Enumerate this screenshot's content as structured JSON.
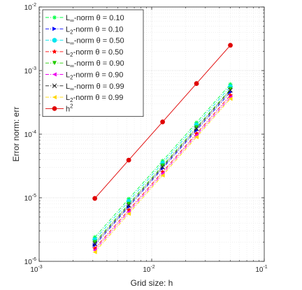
{
  "chart_data": {
    "type": "line",
    "xscale": "log",
    "yscale": "log",
    "xlim": [
      0.001,
      0.1
    ],
    "ylim": [
      1e-06,
      0.01
    ],
    "xlabel": "Grid size: h",
    "ylabel": "Error norm: err",
    "x_ticks": [
      {
        "value": 0.001,
        "base": "10",
        "exp": "-3"
      },
      {
        "value": 0.01,
        "base": "10",
        "exp": "-2"
      },
      {
        "value": 0.1,
        "base": "10",
        "exp": "-1"
      }
    ],
    "y_ticks": [
      {
        "value": 1e-06,
        "base": "10",
        "exp": "-6"
      },
      {
        "value": 1e-05,
        "base": "10",
        "exp": "-5"
      },
      {
        "value": 0.0001,
        "base": "10",
        "exp": "-4"
      },
      {
        "value": 0.001,
        "base": "10",
        "exp": "-3"
      },
      {
        "value": 0.01,
        "base": "10",
        "exp": "-2"
      }
    ],
    "grid": true,
    "legend_position": "top-left",
    "x": [
      0.003125,
      0.00625,
      0.0125,
      0.025,
      0.05
    ],
    "series": [
      {
        "name": "L∞-norm θ = 0.10",
        "base": "L",
        "sub": "∞",
        "rest": "-norm θ = 0.10",
        "color": "#00ff44",
        "line": "dashdot",
        "marker": "asterisk",
        "values": [
          2.4e-06,
          9.6e-06,
          3.8e-05,
          0.000152,
          0.00061
        ]
      },
      {
        "name": "L2-norm θ = 0.10",
        "base": "L",
        "sub": "2",
        "rest": "-norm θ = 0.10",
        "color": "#0000ff",
        "line": "dashdot",
        "marker": "triangle-right",
        "values": [
          1.8e-06,
          7.2e-06,
          2.9e-05,
          0.000115,
          0.00046
        ]
      },
      {
        "name": "L∞-norm θ = 0.50",
        "base": "L",
        "sub": "∞",
        "rest": "-norm θ = 0.50",
        "color": "#00e5ee",
        "line": "dashdot",
        "marker": "circle",
        "values": [
          2.2e-06,
          8.8e-06,
          3.5e-05,
          0.00014,
          0.00056
        ]
      },
      {
        "name": "L2-norm θ = 0.50",
        "base": "L",
        "sub": "2",
        "rest": "-norm θ = 0.50",
        "color": "#ff0000",
        "line": "dashdot",
        "marker": "star",
        "values": [
          1.6e-06,
          6.4e-06,
          2.55e-05,
          0.000102,
          0.00041
        ]
      },
      {
        "name": "L∞-norm θ = 0.90",
        "base": "L",
        "sub": "∞",
        "rest": "-norm θ = 0.90",
        "color": "#22cc00",
        "line": "dashdot",
        "marker": "triangle-down",
        "values": [
          2e-06,
          8e-06,
          3.2e-05,
          0.000128,
          0.00051
        ]
      },
      {
        "name": "L2-norm θ = 0.90",
        "base": "L",
        "sub": "2",
        "rest": "-norm θ = 0.90",
        "color": "#ee00ee",
        "line": "dashdot",
        "marker": "triangle-left",
        "values": [
          1.5e-06,
          6e-06,
          2.4e-05,
          9.6e-05,
          0.00038
        ]
      },
      {
        "name": "L∞-norm θ = 0.99",
        "base": "L",
        "sub": "∞",
        "rest": "-norm θ = 0.99",
        "color": "#222222",
        "line": "dashdot",
        "marker": "x",
        "values": [
          1.9e-06,
          7.6e-06,
          3.05e-05,
          0.000122,
          0.00049
        ]
      },
      {
        "name": "L2-norm θ = 0.99",
        "base": "L",
        "sub": "2",
        "rest": "-norm θ = 0.99",
        "color": "#ffd700",
        "line": "dashdot",
        "marker": "triangle-left",
        "values": [
          1.4e-06,
          5.6e-06,
          2.25e-05,
          9e-05,
          0.00036
        ]
      },
      {
        "name": "h2",
        "base": "h",
        "sup": "2",
        "rest": "",
        "color": "#e00000",
        "line": "solid",
        "marker": "circle",
        "values": [
          9.77e-06,
          3.91e-05,
          0.000156,
          0.000625,
          0.0025
        ]
      }
    ]
  }
}
